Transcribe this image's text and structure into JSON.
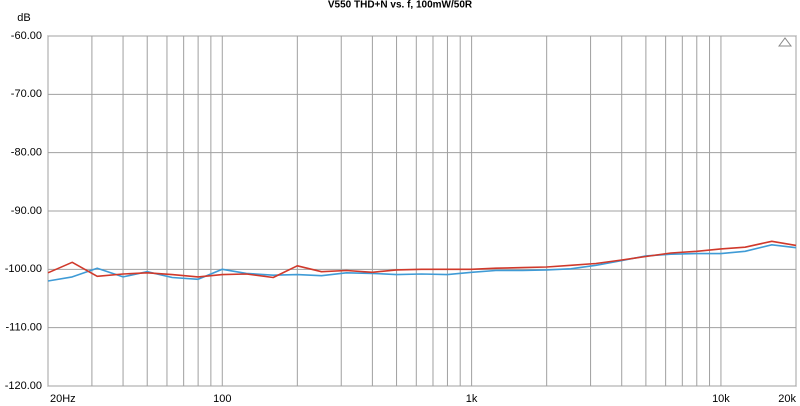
{
  "chart_data": {
    "type": "line",
    "title": "V550 THD+N vs. f, 100mW/50R",
    "ylabel": "dB",
    "xscale": "log",
    "grid": true,
    "x": [
      20,
      25,
      31.5,
      40,
      50,
      63,
      80,
      100,
      125,
      160,
      200,
      250,
      315,
      400,
      500,
      630,
      800,
      1000,
      1250,
      1600,
      2000,
      2500,
      3150,
      4000,
      5000,
      6300,
      8000,
      10000,
      12500,
      16000,
      20000
    ],
    "series": [
      {
        "color": "#3f9bd6",
        "values": [
          -102.0,
          -101.3,
          -99.8,
          -101.3,
          -100.4,
          -101.4,
          -101.7,
          -100.0,
          -100.7,
          -101.0,
          -100.9,
          -101.1,
          -100.6,
          -100.7,
          -100.9,
          -100.8,
          -100.9,
          -100.5,
          -100.2,
          -100.2,
          -100.1,
          -99.9,
          -99.3,
          -98.5,
          -97.7,
          -97.4,
          -97.3,
          -97.3,
          -96.9,
          -95.8,
          -96.3
        ]
      },
      {
        "color": "#d0392b",
        "values": [
          -100.6,
          -98.8,
          -101.2,
          -100.8,
          -100.6,
          -100.9,
          -101.3,
          -100.9,
          -100.8,
          -101.4,
          -99.4,
          -100.4,
          -100.2,
          -100.5,
          -100.1,
          -100.0,
          -100.0,
          -100.0,
          -99.8,
          -99.7,
          -99.6,
          -99.3,
          -99.0,
          -98.4,
          -97.8,
          -97.2,
          -96.9,
          -96.5,
          -96.2,
          -95.2,
          -95.9
        ]
      }
    ],
    "xlim": [
      20,
      20000
    ],
    "xticks": [
      {
        "value": 20,
        "label": "20Hz"
      },
      100,
      {
        "value": 1000,
        "label": "1k"
      },
      {
        "value": 10000,
        "label": "10k"
      },
      {
        "value": 20000,
        "label": "20k"
      }
    ],
    "xminorticks": [
      30,
      40,
      50,
      60,
      70,
      80,
      90,
      200,
      300,
      400,
      500,
      600,
      700,
      800,
      900,
      2000,
      3000,
      4000,
      5000,
      6000,
      7000,
      8000,
      9000
    ],
    "ylim": [
      -120,
      -60
    ],
    "yticks": [
      {
        "value": -120,
        "label": "-120.00"
      },
      {
        "value": -110,
        "label": "-110.00"
      },
      {
        "value": -100,
        "label": "-100.00"
      },
      {
        "value": -90,
        "label": "-90.00"
      },
      {
        "value": -80,
        "label": "-80.00"
      },
      {
        "value": -70,
        "label": "-70.00"
      },
      {
        "value": -60,
        "label": "-60.00"
      }
    ]
  }
}
